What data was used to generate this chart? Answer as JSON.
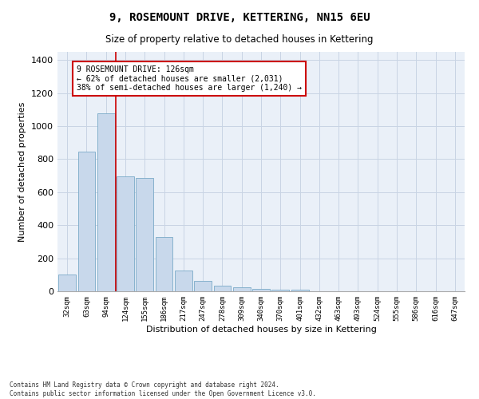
{
  "title": "9, ROSEMOUNT DRIVE, KETTERING, NN15 6EU",
  "subtitle": "Size of property relative to detached houses in Kettering",
  "xlabel": "Distribution of detached houses by size in Kettering",
  "ylabel": "Number of detached properties",
  "bar_color": "#c8d8eb",
  "bar_edge_color": "#7aaac8",
  "grid_color": "#c8d4e4",
  "background_color": "#eaf0f8",
  "categories": [
    "32sqm",
    "63sqm",
    "94sqm",
    "124sqm",
    "155sqm",
    "186sqm",
    "217sqm",
    "247sqm",
    "278sqm",
    "309sqm",
    "340sqm",
    "370sqm",
    "401sqm",
    "432sqm",
    "463sqm",
    "493sqm",
    "524sqm",
    "555sqm",
    "586sqm",
    "616sqm",
    "647sqm"
  ],
  "values": [
    100,
    845,
    1080,
    695,
    685,
    330,
    125,
    65,
    35,
    22,
    14,
    12,
    12,
    0,
    0,
    0,
    0,
    0,
    0,
    0,
    0
  ],
  "ylim": [
    0,
    1450
  ],
  "yticks": [
    0,
    200,
    400,
    600,
    800,
    1000,
    1200,
    1400
  ],
  "annotation_text_line1": "9 ROSEMOUNT DRIVE: 126sqm",
  "annotation_text_line2": "← 62% of detached houses are smaller (2,031)",
  "annotation_text_line3": "38% of semi-detached houses are larger (1,240) →",
  "annotation_box_color": "#ffffff",
  "annotation_border_color": "#cc0000",
  "vertical_line_color": "#cc0000",
  "footer_line1": "Contains HM Land Registry data © Crown copyright and database right 2024.",
  "footer_line2": "Contains public sector information licensed under the Open Government Licence v3.0."
}
